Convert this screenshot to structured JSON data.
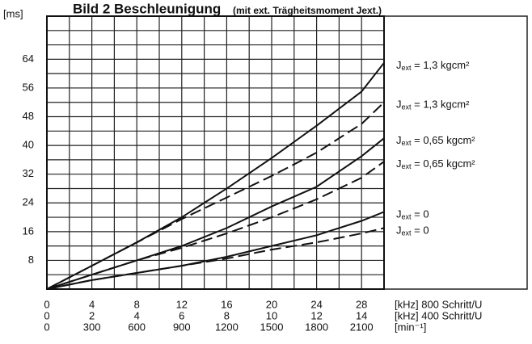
{
  "chart_data": {
    "type": "line",
    "title": "Bild 2  Beschleunigung",
    "subtitle": "(mit ext. Trägheitsmoment Jext.)",
    "y_label": "[ms]",
    "x": [
      0,
      4,
      8,
      12,
      16,
      20,
      24,
      28,
      30
    ],
    "series": [
      {
        "name": "Jext = 1,3 kgcm²",
        "color": "#111",
        "dashed": false,
        "values": [
          0,
          6.5,
          13,
          20,
          28,
          36.5,
          45.5,
          55,
          63
        ]
      },
      {
        "name": "Jext = 1,3 kgcm²",
        "color": "#111",
        "dashed": true,
        "values": [
          0,
          6.5,
          13,
          19.5,
          25.5,
          31.5,
          38,
          46,
          52
        ]
      },
      {
        "name": "Jext = 0,65 kgcm²",
        "color": "#111",
        "dashed": false,
        "values": [
          0,
          4,
          8,
          12,
          17,
          23,
          28.5,
          37,
          42
        ]
      },
      {
        "name": "Jext = 0,65 kgcm²",
        "color": "#111",
        "dashed": true,
        "values": [
          0,
          4,
          8,
          11.5,
          15.5,
          20,
          25,
          31,
          35.5
        ]
      },
      {
        "name": "Jext = 0",
        "color": "#111",
        "dashed": false,
        "values": [
          0,
          2.5,
          4.5,
          6.5,
          9,
          12,
          15,
          19,
          21.5
        ]
      },
      {
        "name": "Jext = 0",
        "color": "#111",
        "dashed": true,
        "values": [
          0,
          2.5,
          4.5,
          6.5,
          8.5,
          11,
          13,
          15.5,
          17
        ]
      }
    ],
    "xlim": [
      0,
      30
    ],
    "xticks": [
      0,
      4,
      8,
      12,
      16,
      20,
      24,
      28
    ],
    "xminor": [
      2,
      6,
      10,
      14,
      18,
      22,
      26
    ],
    "x2lim": [
      0,
      15
    ],
    "x2ticks": [
      0,
      2,
      4,
      6,
      8,
      10,
      12,
      14
    ],
    "x3lim": [
      0,
      2250
    ],
    "x3ticks": [
      0,
      300,
      600,
      900,
      1200,
      1500,
      1800,
      2100
    ],
    "x_units": [
      "[kHz] 800 Schritt/U",
      "[kHz] 400 Schritt/U",
      "[min⁻¹]"
    ],
    "ylim": [
      0,
      76
    ],
    "yticks": [
      8,
      16,
      24,
      32,
      40,
      48,
      56,
      64
    ],
    "yminor": [
      4,
      12,
      20,
      28,
      36,
      44,
      52,
      60,
      68,
      72
    ],
    "grid": true
  }
}
